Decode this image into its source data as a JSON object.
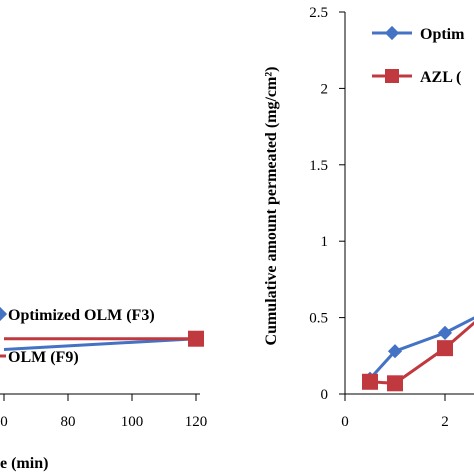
{
  "colors": {
    "blue": "#4472C4",
    "red": "#C0393F",
    "axis": "#000000"
  },
  "chart_data": [
    {
      "type": "line",
      "xlabel": "e (min)",
      "ylabel": "",
      "x_ticks": [
        "0",
        "80",
        "100",
        "120"
      ],
      "xlim": [
        60,
        120
      ],
      "legend_position": "bottom",
      "series": [
        {
          "name": "Optimized OLM (F3)",
          "color": "#4472C4",
          "marker": "diamond",
          "x": [
            60,
            120
          ],
          "y": [
            0.78,
            0.97
          ]
        },
        {
          "name": "OLM (F9)",
          "color": "#C0393F",
          "marker": "square",
          "x": [
            60,
            120
          ],
          "y": [
            0.97,
            0.97
          ]
        }
      ]
    },
    {
      "type": "line",
      "xlabel": "",
      "ylabel": "Cumulative amount permeated (mg/cm²)",
      "y_ticks": [
        "0",
        "0.5",
        "1",
        "1.5",
        "2",
        "2.5"
      ],
      "x_ticks": [
        "0",
        "2"
      ],
      "xlim": [
        0,
        2.6
      ],
      "ylim": [
        0,
        2.5
      ],
      "legend_position": "top-right",
      "series": [
        {
          "name": "Optim",
          "color": "#4472C4",
          "marker": "diamond",
          "x": [
            0.5,
            1,
            2,
            2.6
          ],
          "y": [
            0.1,
            0.28,
            0.4,
            0.5
          ]
        },
        {
          "name": "AZL (",
          "color": "#C0393F",
          "marker": "square",
          "x": [
            0.5,
            1,
            2,
            2.6
          ],
          "y": [
            0.08,
            0.07,
            0.3,
            0.47
          ]
        }
      ]
    }
  ]
}
